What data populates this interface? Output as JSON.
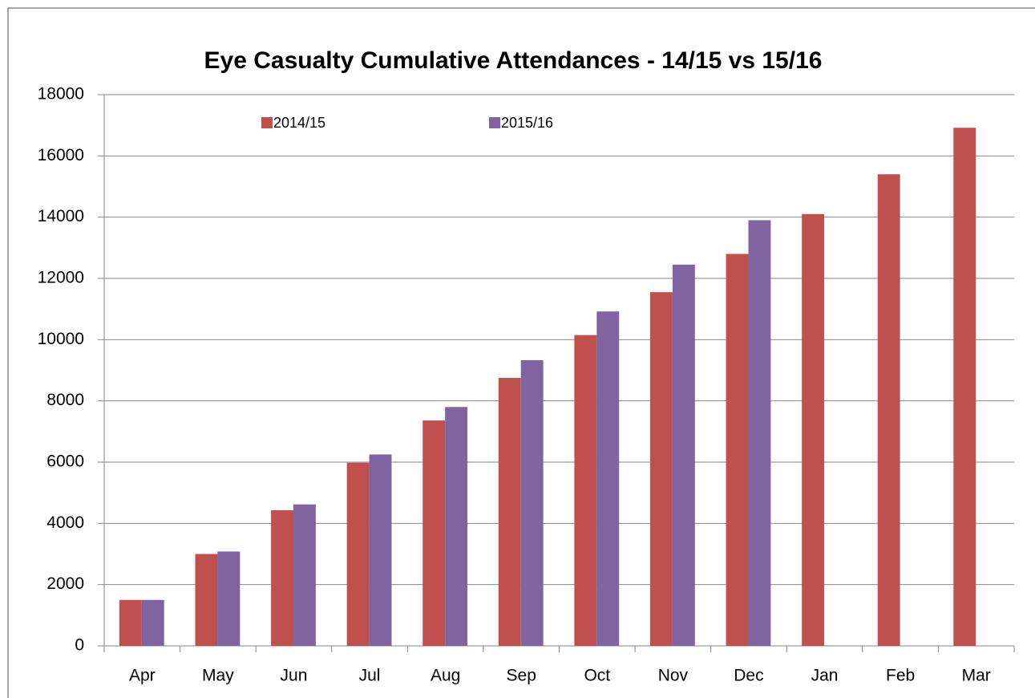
{
  "chart_data": {
    "type": "bar",
    "title": "Eye Casualty  Cumulative  Attendances  - 14/15 vs 15/16",
    "categories": [
      "Apr",
      "May",
      "Jun",
      "Jul",
      "Aug",
      "Sep",
      "Oct",
      "Nov",
      "Dec",
      "Jan",
      "Feb",
      "Mar"
    ],
    "series": [
      {
        "name": "2014/15",
        "color": "#c0504d",
        "values": [
          1500,
          3000,
          4430,
          5980,
          7360,
          8750,
          10150,
          11550,
          12800,
          14100,
          15400,
          16920
        ]
      },
      {
        "name": "2015/16",
        "color": "#8064a2",
        "values": [
          1500,
          3080,
          4620,
          6250,
          7800,
          9330,
          10920,
          12450,
          13900,
          null,
          null,
          null
        ]
      }
    ],
    "ylim": [
      0,
      18000
    ],
    "yticks": [
      0,
      2000,
      4000,
      6000,
      8000,
      10000,
      12000,
      14000,
      16000,
      18000
    ],
    "grid": true
  }
}
